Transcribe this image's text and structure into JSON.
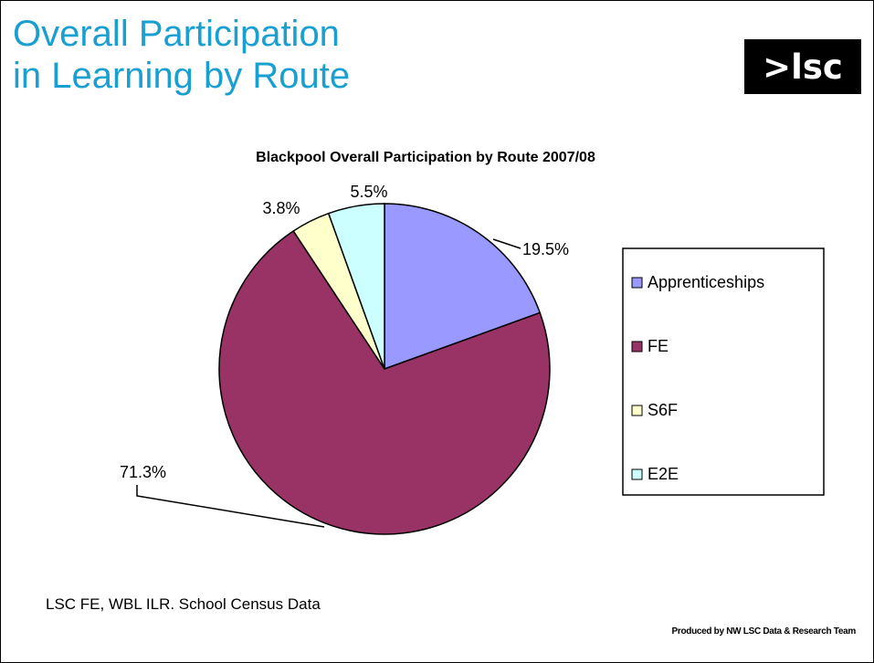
{
  "slide": {
    "title_line1": "Overall Participation",
    "title_line2": "in Learning by Route",
    "logo_text": ">lsc",
    "source_text": "LSC FE, WBL ILR. School Census Data",
    "credit_text": "Produced by NW LSC Data & Research Team"
  },
  "chart_data": {
    "type": "pie",
    "title": "Blackpool Overall Participation by Route 2007/08",
    "legend_position": "right",
    "slices": [
      {
        "name": "Apprenticeships",
        "value": 19.5,
        "label": "19.5%",
        "color": "#9999ff"
      },
      {
        "name": "FE",
        "value": 71.3,
        "label": "71.3%",
        "color": "#993366"
      },
      {
        "name": "S6F",
        "value": 3.8,
        "label": "3.8%",
        "color": "#ffffcc"
      },
      {
        "name": "E2E",
        "value": 5.5,
        "label": "5.5%",
        "color": "#ccffff"
      }
    ]
  }
}
